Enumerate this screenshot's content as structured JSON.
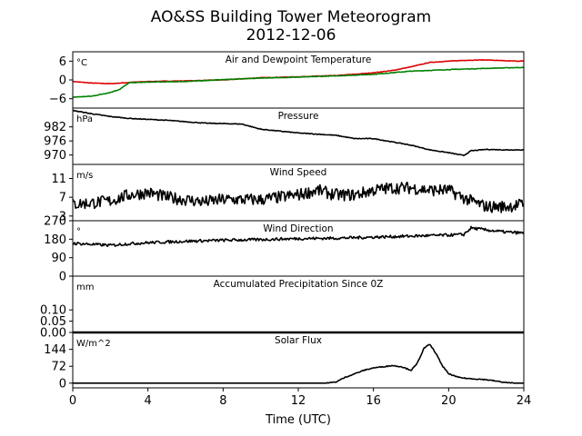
{
  "figure": {
    "title_line1": "AO&SS Building Tower Meteorogram",
    "title_line2": "2012-12-06",
    "xlabel": "Time (UTC)",
    "xticks": [
      0,
      4,
      8,
      12,
      16,
      20,
      24
    ],
    "xlim": [
      0,
      24
    ]
  },
  "chart_data": [
    {
      "type": "line",
      "title": "Air and Dewpoint Temperature",
      "unit": "°C",
      "ylim": [
        -9,
        9
      ],
      "yticks": [
        6,
        0,
        -6
      ],
      "series": [
        {
          "color": "#dd0000",
          "points": [
            [
              0,
              -0.5
            ],
            [
              1,
              -1
            ],
            [
              2,
              -1.2
            ],
            [
              3,
              -0.8
            ],
            [
              4,
              -0.5
            ],
            [
              6,
              -0.3
            ],
            [
              8,
              0
            ],
            [
              10,
              0.7
            ],
            [
              12,
              1.0
            ],
            [
              14,
              1.4
            ],
            [
              15,
              1.8
            ],
            [
              16,
              2.3
            ],
            [
              17,
              3.0
            ],
            [
              18,
              4.2
            ],
            [
              19,
              5.6
            ],
            [
              20,
              6.0
            ],
            [
              21,
              6.3
            ],
            [
              22,
              6.4
            ],
            [
              23,
              6.1
            ],
            [
              24,
              6.0
            ]
          ]
        },
        {
          "color": "#008000",
          "points": [
            [
              0,
              -5.5
            ],
            [
              1,
              -5.2
            ],
            [
              2,
              -4
            ],
            [
              2.5,
              -3
            ],
            [
              3,
              -0.9
            ],
            [
              4,
              -0.7
            ],
            [
              6,
              -0.5
            ],
            [
              8,
              0.1
            ],
            [
              10,
              0.6
            ],
            [
              12,
              0.9
            ],
            [
              14,
              1.3
            ],
            [
              16,
              1.8
            ],
            [
              18,
              2.8
            ],
            [
              20,
              3.3
            ],
            [
              22,
              3.7
            ],
            [
              24,
              4.0
            ]
          ]
        }
      ]
    },
    {
      "type": "line",
      "title": "Pressure",
      "unit": "hPa",
      "ylim": [
        966,
        990
      ],
      "yticks": [
        982,
        976,
        970
      ],
      "series": [
        {
          "color": "#000000",
          "points": [
            [
              0,
              989
            ],
            [
              1,
              987.6
            ],
            [
              2,
              986.4
            ],
            [
              3,
              985.6
            ],
            [
              5,
              984.8
            ],
            [
              7,
              983.6
            ],
            [
              9,
              983.2
            ],
            [
              10,
              981
            ],
            [
              12,
              979.4
            ],
            [
              14,
              978.4
            ],
            [
              15,
              977
            ],
            [
              16,
              977
            ],
            [
              17,
              975.6
            ],
            [
              18,
              974.2
            ],
            [
              19,
              972.2
            ],
            [
              20,
              971
            ],
            [
              20.8,
              969.8
            ],
            [
              21.2,
              971.8
            ],
            [
              22,
              972.4
            ],
            [
              23,
              972.2
            ],
            [
              24,
              972.2
            ]
          ]
        }
      ]
    },
    {
      "type": "line",
      "title": "Wind Speed",
      "unit": "m/s",
      "ylim": [
        2,
        14
      ],
      "yticks": [
        11,
        7,
        3
      ],
      "series": [
        {
          "color": "#000000",
          "points": [
            [
              0,
              5.5
            ],
            [
              1,
              5.8
            ],
            [
              2,
              6.2
            ],
            [
              3,
              7.5
            ],
            [
              4,
              8
            ],
            [
              5,
              7
            ],
            [
              6,
              6.5
            ],
            [
              7,
              6
            ],
            [
              8,
              6.5
            ],
            [
              9,
              6.5
            ],
            [
              10,
              6.5
            ],
            [
              11,
              7
            ],
            [
              12,
              7.5
            ],
            [
              13,
              8.5
            ],
            [
              14,
              7.5
            ],
            [
              15,
              7.5
            ],
            [
              16,
              8.5
            ],
            [
              17,
              9
            ],
            [
              18,
              9
            ],
            [
              19,
              8.5
            ],
            [
              20,
              8.5
            ],
            [
              21,
              6.5
            ],
            [
              22,
              5
            ],
            [
              23,
              5
            ],
            [
              24,
              5.5
            ]
          ]
        }
      ]
    },
    {
      "type": "line",
      "title": "Wind Direction",
      "unit": "°",
      "ylim": [
        0,
        270
      ],
      "yticks": [
        270,
        180,
        90,
        0
      ],
      "series": [
        {
          "color": "#000000",
          "points": [
            [
              0,
              160
            ],
            [
              1,
              155
            ],
            [
              2,
              150
            ],
            [
              3,
              158
            ],
            [
              4,
              163
            ],
            [
              6,
              170
            ],
            [
              8,
              175
            ],
            [
              10,
              178
            ],
            [
              12,
              183
            ],
            [
              14,
              185
            ],
            [
              16,
              190
            ],
            [
              18,
              195
            ],
            [
              20,
              200
            ],
            [
              20.8,
              203
            ],
            [
              21.2,
              235
            ],
            [
              22,
              225
            ],
            [
              23,
              215
            ],
            [
              24,
              210
            ]
          ]
        }
      ]
    },
    {
      "type": "line",
      "title": "Accumulated Precipitation Since 0Z",
      "unit": "mm",
      "ylim": [
        0,
        0.25
      ],
      "yticks": [
        0.1,
        0.05,
        0.0
      ],
      "yticklabels": [
        "0.10",
        "0.05",
        "0.00"
      ],
      "series": [
        {
          "color": "#000000",
          "points": [
            [
              0,
              0
            ],
            [
              24,
              0
            ]
          ]
        }
      ]
    },
    {
      "type": "line",
      "title": "Solar Flux",
      "unit": "W/m^2",
      "ylim": [
        -20,
        216
      ],
      "yticks": [
        144,
        72,
        0
      ],
      "series": [
        {
          "color": "#000000",
          "points": [
            [
              0,
              0
            ],
            [
              13.5,
              0
            ],
            [
              14,
              5
            ],
            [
              14.5,
              25
            ],
            [
              15,
              40
            ],
            [
              15.5,
              55
            ],
            [
              16,
              65
            ],
            [
              16.5,
              70
            ],
            [
              17,
              75
            ],
            [
              17.5,
              70
            ],
            [
              18,
              55
            ],
            [
              18.3,
              80
            ],
            [
              18.7,
              150
            ],
            [
              19,
              165
            ],
            [
              19.3,
              130
            ],
            [
              19.7,
              70
            ],
            [
              20,
              40
            ],
            [
              20.5,
              25
            ],
            [
              21,
              20
            ],
            [
              22,
              15
            ],
            [
              23,
              3
            ],
            [
              23.5,
              0
            ],
            [
              24,
              0
            ]
          ]
        }
      ]
    }
  ]
}
